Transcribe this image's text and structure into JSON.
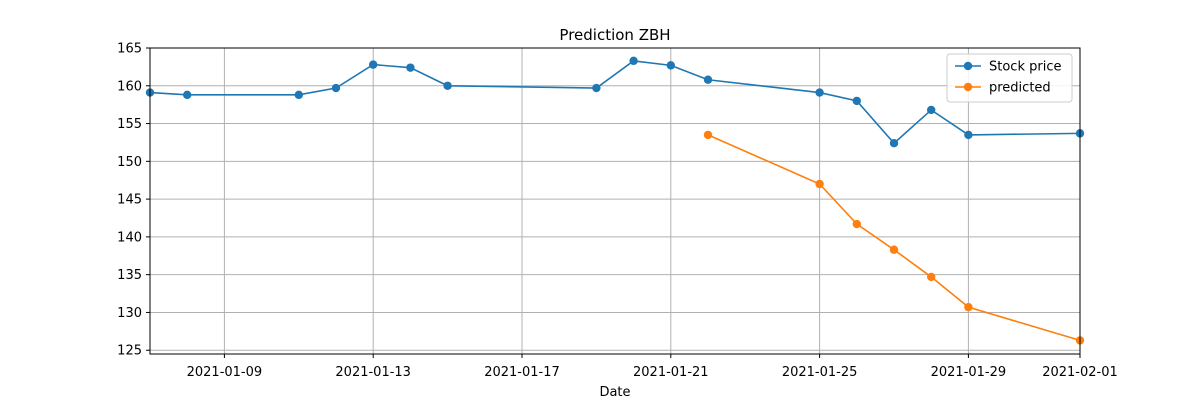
{
  "chart_data": {
    "type": "line",
    "title": "Prediction ZBH",
    "xlabel": "Date",
    "ylabel": "",
    "x_axis": {
      "kind": "date",
      "range": [
        "2021-01-07",
        "2021-02-01"
      ],
      "ticks": [
        "2021-01-09",
        "2021-01-13",
        "2021-01-17",
        "2021-01-21",
        "2021-01-25",
        "2021-01-29",
        "2021-02-01"
      ]
    },
    "y_axis": {
      "range": [
        124.5,
        165
      ],
      "ticks": [
        125,
        130,
        135,
        140,
        145,
        150,
        155,
        160,
        165
      ]
    },
    "grid": true,
    "legend_position": "top-right",
    "series": [
      {
        "name": "Stock price",
        "color": "#1f77b4",
        "points": [
          {
            "x": "2021-01-07",
            "y": 159.1
          },
          {
            "x": "2021-01-08",
            "y": 158.8
          },
          {
            "x": "2021-01-11",
            "y": 158.8
          },
          {
            "x": "2021-01-12",
            "y": 159.7
          },
          {
            "x": "2021-01-13",
            "y": 162.8
          },
          {
            "x": "2021-01-14",
            "y": 162.4
          },
          {
            "x": "2021-01-15",
            "y": 160.0
          },
          {
            "x": "2021-01-19",
            "y": 159.7
          },
          {
            "x": "2021-01-20",
            "y": 163.3
          },
          {
            "x": "2021-01-21",
            "y": 162.7
          },
          {
            "x": "2021-01-22",
            "y": 160.8
          },
          {
            "x": "2021-01-25",
            "y": 159.1
          },
          {
            "x": "2021-01-26",
            "y": 158.0
          },
          {
            "x": "2021-01-27",
            "y": 152.4
          },
          {
            "x": "2021-01-28",
            "y": 156.8
          },
          {
            "x": "2021-01-29",
            "y": 153.5
          },
          {
            "x": "2021-02-01",
            "y": 153.7
          }
        ]
      },
      {
        "name": "predicted",
        "color": "#ff7f0e",
        "points": [
          {
            "x": "2021-01-22",
            "y": 153.5
          },
          {
            "x": "2021-01-25",
            "y": 147.0
          },
          {
            "x": "2021-01-26",
            "y": 141.7
          },
          {
            "x": "2021-01-27",
            "y": 138.3
          },
          {
            "x": "2021-01-28",
            "y": 134.7
          },
          {
            "x": "2021-01-29",
            "y": 130.7
          },
          {
            "x": "2021-02-01",
            "y": 126.3
          }
        ]
      }
    ]
  }
}
